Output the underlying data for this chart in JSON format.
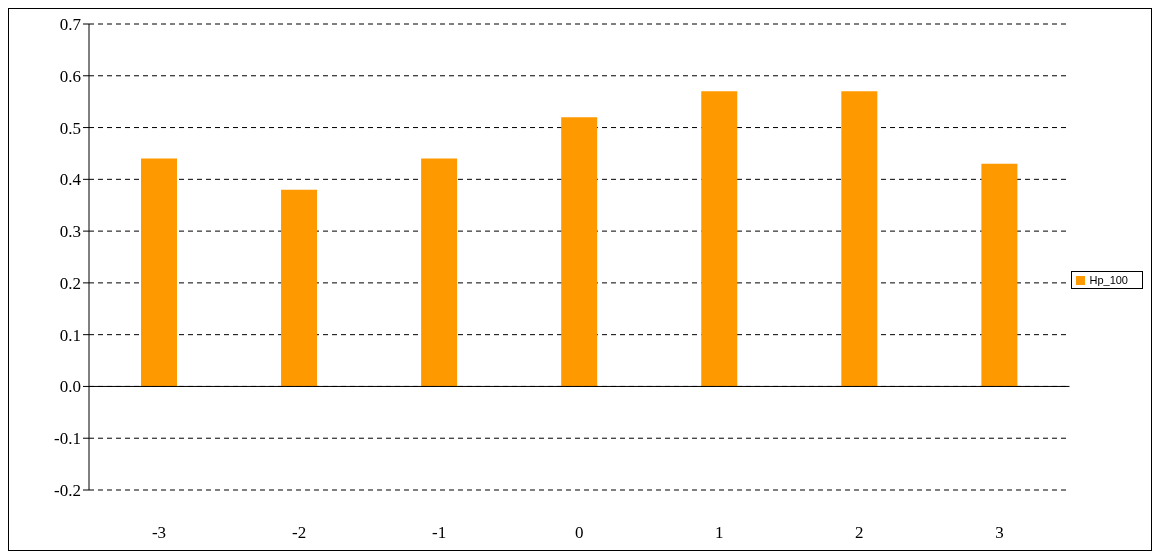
{
  "chart_data": {
    "type": "bar",
    "categories": [
      "-3",
      "-2",
      "-1",
      "0",
      "1",
      "2",
      "3"
    ],
    "series": [
      {
        "name": "Hp_100",
        "color": "#ff9900",
        "values": [
          0.44,
          0.38,
          0.44,
          0.52,
          0.57,
          0.57,
          0.43
        ]
      }
    ],
    "ylim": [
      -0.2,
      0.7
    ],
    "yticks": [
      {
        "value": -0.2,
        "label": "-0.2"
      },
      {
        "value": -0.1,
        "label": "-0.1"
      },
      {
        "value": 0,
        "label": "0.0"
      },
      {
        "value": 0.1,
        "label": "0.1"
      },
      {
        "value": 0.2,
        "label": "0.2"
      },
      {
        "value": 0.3,
        "label": "0.3"
      },
      {
        "value": 0.4,
        "label": "0.4"
      },
      {
        "value": 0.5,
        "label": "0.5"
      },
      {
        "value": 0.6,
        "label": "0.6"
      },
      {
        "value": 0.7,
        "label": "0.7"
      }
    ],
    "grid": "y",
    "legend": "right"
  }
}
